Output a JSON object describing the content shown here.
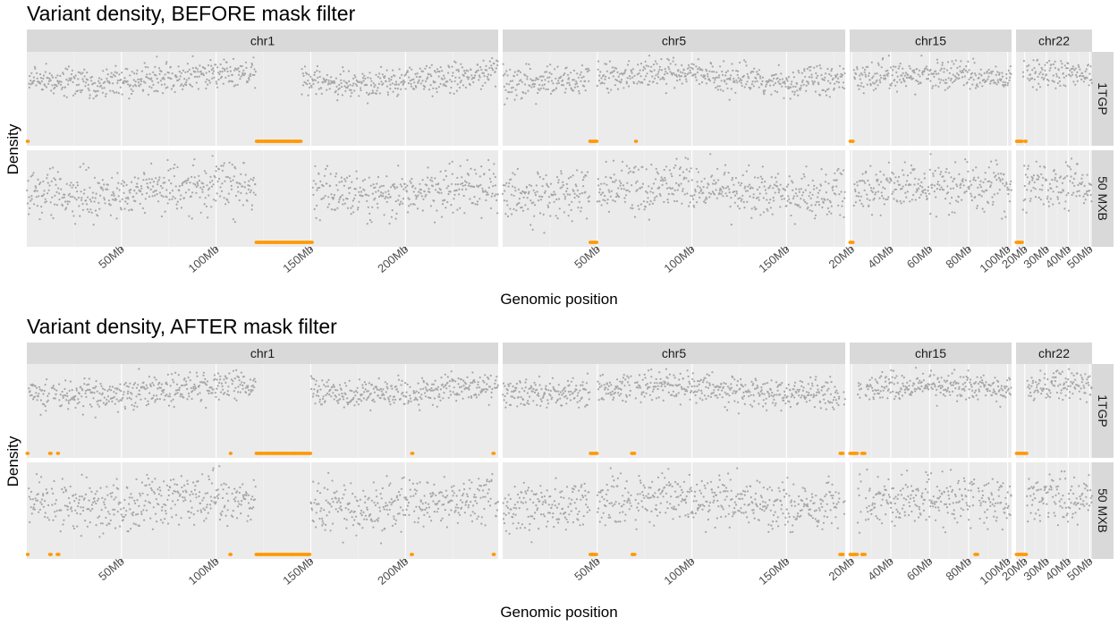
{
  "chart_data": [
    {
      "type": "scatter",
      "title": "Variant density, BEFORE mask filter",
      "xlabel": "Genomic position",
      "ylabel": "Density",
      "columns": [
        {
          "label": "chr1",
          "xlim_mb": [
            0,
            249
          ],
          "ticks_mb": [
            50,
            100,
            150,
            200
          ],
          "tick_labels": [
            "50Mb",
            "100Mb",
            "150Mb",
            "200Mb"
          ]
        },
        {
          "label": "chr5",
          "xlim_mb": [
            0,
            181
          ],
          "ticks_mb": [
            50,
            100,
            150
          ],
          "tick_labels": [
            "50Mb",
            "100Mb",
            "150Mb"
          ]
        },
        {
          "label": "chr15",
          "xlim_mb": [
            19,
            102
          ],
          "ticks_mb": [
            20,
            40,
            60,
            80,
            100
          ],
          "tick_labels": [
            "20Mb",
            "40Mb",
            "60Mb",
            "80Mb",
            "100Mb"
          ]
        },
        {
          "label": "chr22",
          "xlim_mb": [
            16,
            51
          ],
          "ticks_mb": [
            20,
            30,
            40,
            50
          ],
          "tick_labels": [
            "20Mb",
            "30Mb",
            "40Mb",
            "50Mb"
          ]
        }
      ],
      "rows": [
        {
          "label": "1TGP"
        },
        {
          "label": "50 MXB"
        }
      ],
      "series_colors": {
        "density": "#a6a6a6",
        "low_density": "#ff9900"
      },
      "low_density_regions_mb": {
        "1TGP": {
          "chr1": [
            [
              121,
              145
            ],
            [
              0,
              1
            ]
          ],
          "chr5": [
            [
              46,
              50
            ],
            [
              70,
              71
            ]
          ],
          "chr15": [
            [
              19,
              21
            ]
          ],
          "chr22": [
            [
              16,
              19
            ],
            [
              20,
              21
            ]
          ]
        },
        "50 MXB": {
          "chr1": [
            [
              121,
              151
            ]
          ],
          "chr5": [
            [
              46,
              50
            ]
          ],
          "chr15": [
            [
              19,
              21
            ]
          ],
          "chr22": [
            [
              16,
              19
            ]
          ]
        }
      },
      "grid": true,
      "legend": "none"
    },
    {
      "type": "scatter",
      "title": "Variant density, AFTER mask filter",
      "xlabel": "Genomic position",
      "ylabel": "Density",
      "columns": [
        {
          "label": "chr1",
          "xlim_mb": [
            0,
            249
          ],
          "ticks_mb": [
            50,
            100,
            150,
            200
          ],
          "tick_labels": [
            "50Mb",
            "100Mb",
            "150Mb",
            "200Mb"
          ]
        },
        {
          "label": "chr5",
          "xlim_mb": [
            0,
            181
          ],
          "ticks_mb": [
            50,
            100,
            150
          ],
          "tick_labels": [
            "50Mb",
            "100Mb",
            "150Mb"
          ]
        },
        {
          "label": "chr15",
          "xlim_mb": [
            19,
            102
          ],
          "ticks_mb": [
            20,
            40,
            60,
            80,
            100
          ],
          "tick_labels": [
            "20Mb",
            "40Mb",
            "60Mb",
            "80Mb",
            "100Mb"
          ]
        },
        {
          "label": "chr22",
          "xlim_mb": [
            16,
            51
          ],
          "ticks_mb": [
            20,
            30,
            40,
            50
          ],
          "tick_labels": [
            "20Mb",
            "30Mb",
            "40Mb",
            "50Mb"
          ]
        }
      ],
      "rows": [
        {
          "label": "1TGP"
        },
        {
          "label": "50 MXB"
        }
      ],
      "series_colors": {
        "density": "#a6a6a6",
        "low_density": "#ff9900"
      },
      "low_density_regions_mb": {
        "1TGP": {
          "chr1": [
            [
              121,
              150
            ],
            [
              0,
              1
            ],
            [
              12,
              13
            ],
            [
              16,
              17
            ],
            [
              107,
              108
            ],
            [
              203,
              204
            ],
            [
              246,
              247
            ]
          ],
          "chr5": [
            [
              46,
              50
            ],
            [
              68,
              70
            ],
            [
              178,
              180
            ]
          ],
          "chr15": [
            [
              19,
              23
            ],
            [
              25,
              27
            ]
          ],
          "chr22": [
            [
              16,
              21
            ]
          ]
        },
        "50 MXB": {
          "chr1": [
            [
              121,
              150
            ],
            [
              0,
              1
            ],
            [
              12,
              13
            ],
            [
              16,
              17
            ],
            [
              107,
              108
            ],
            [
              203,
              204
            ],
            [
              246,
              247
            ]
          ],
          "chr5": [
            [
              46,
              50
            ],
            [
              68,
              70
            ],
            [
              178,
              180
            ]
          ],
          "chr15": [
            [
              19,
              23
            ],
            [
              25,
              27
            ],
            [
              83,
              85
            ]
          ],
          "chr22": [
            [
              16,
              21
            ]
          ]
        }
      },
      "grid": true,
      "legend": "none"
    }
  ]
}
